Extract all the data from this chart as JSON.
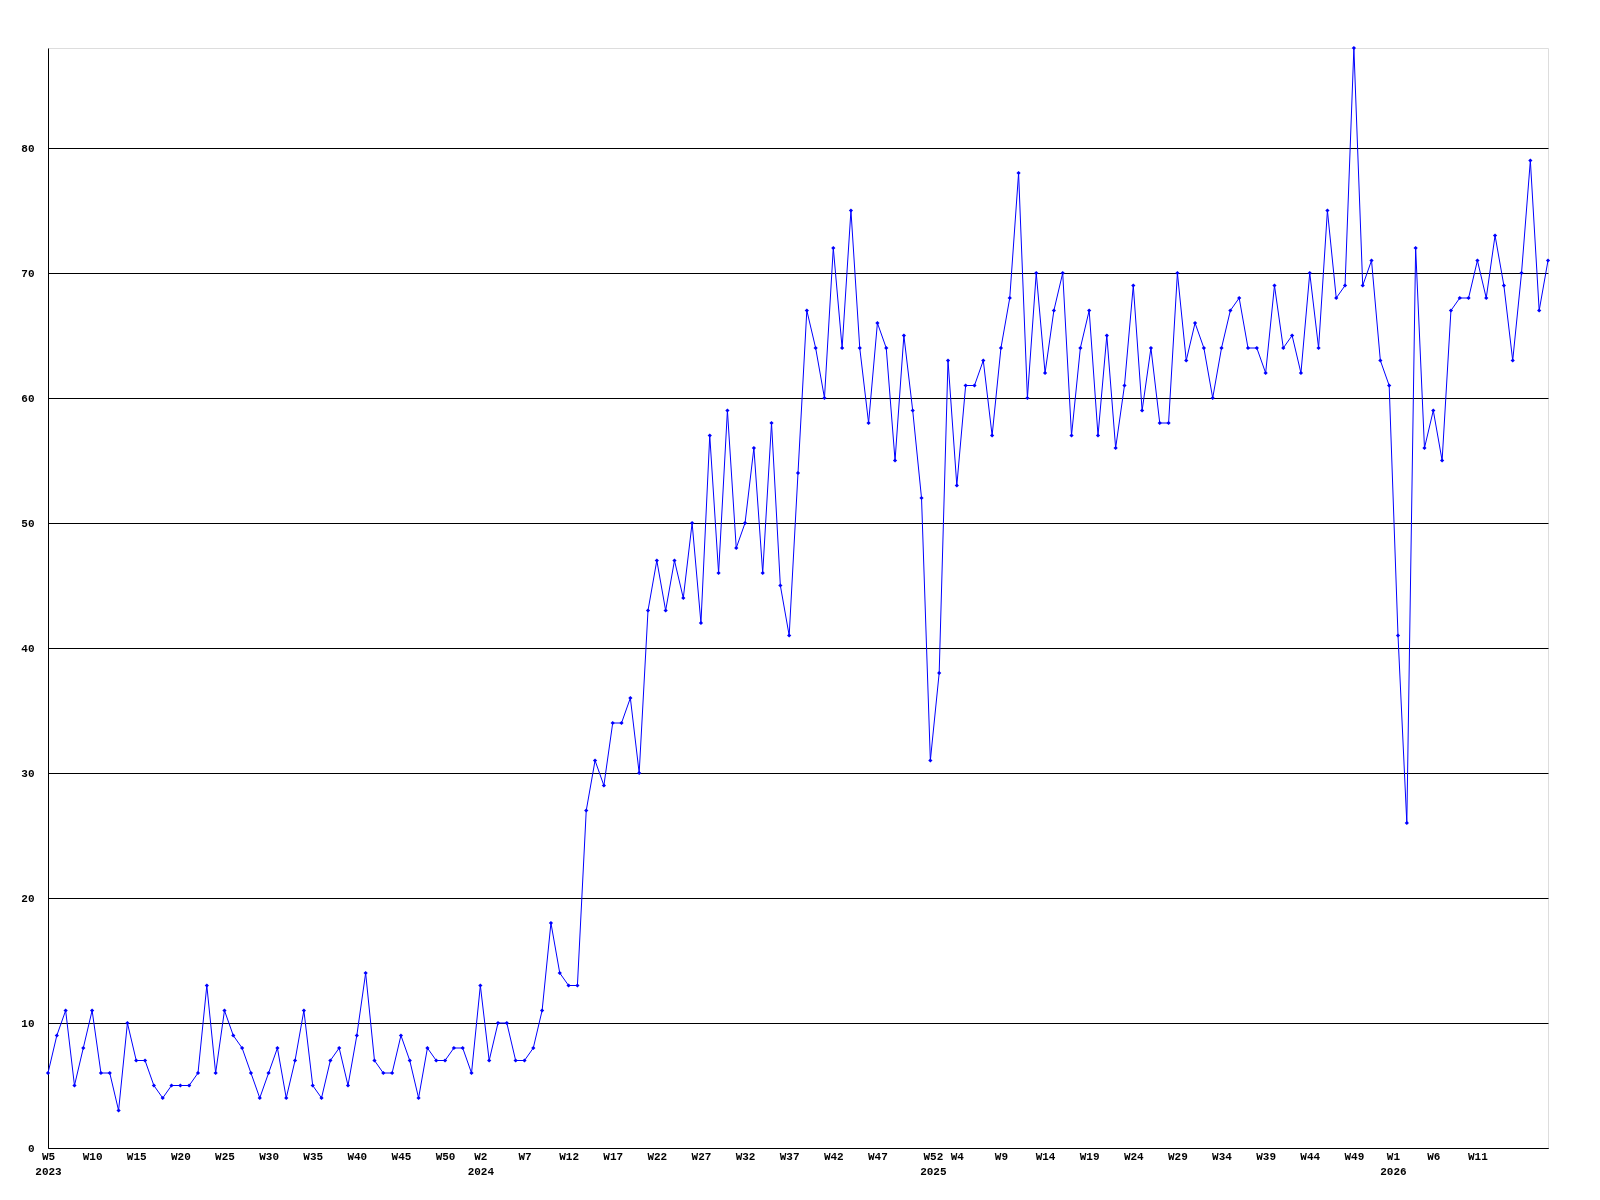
{
  "chart_data": {
    "type": "line",
    "marker": "diamond",
    "grid": "y",
    "line_style": "solid",
    "x": [
      "2023-01-30",
      "2023-02-06",
      "2023-02-13",
      "2023-02-20",
      "2023-02-27",
      "2023-03-06",
      "2023-03-13",
      "2023-03-20",
      "2023-03-27",
      "2023-04-03",
      "2023-04-10",
      "2023-04-17",
      "2023-04-24",
      "2023-05-01",
      "2023-05-08",
      "2023-05-15",
      "2023-05-22",
      "2023-05-29",
      "2023-06-05",
      "2023-06-12",
      "2023-06-19",
      "2023-06-26",
      "2023-07-03",
      "2023-07-10",
      "2023-07-17",
      "2023-07-24",
      "2023-07-31",
      "2023-08-07",
      "2023-08-14",
      "2023-08-21",
      "2023-08-28",
      "2023-09-04",
      "2023-09-11",
      "2023-09-18",
      "2023-09-25",
      "2023-10-02",
      "2023-10-09",
      "2023-10-16",
      "2023-10-23",
      "2023-10-30",
      "2023-11-06",
      "2023-11-13",
      "2023-11-20",
      "2023-11-27",
      "2023-12-04",
      "2023-12-11",
      "2023-12-18",
      "2023-12-25",
      "2024-01-01",
      "2024-01-08",
      "2024-01-15",
      "2024-01-22",
      "2024-01-29",
      "2024-02-05",
      "2024-02-12",
      "2024-02-19",
      "2024-02-26",
      "2024-03-04",
      "2024-03-11",
      "2024-03-18",
      "2024-03-25",
      "2024-04-01",
      "2024-04-08",
      "2024-04-15",
      "2024-04-22",
      "2024-04-29",
      "2024-05-06",
      "2024-05-13",
      "2024-05-20",
      "2024-05-27",
      "2024-06-03",
      "2024-06-10",
      "2024-06-17",
      "2024-06-24",
      "2024-07-01",
      "2024-07-08",
      "2024-07-15",
      "2024-07-22",
      "2024-07-29",
      "2024-08-05",
      "2024-08-12",
      "2024-08-19",
      "2024-08-26",
      "2024-09-02",
      "2024-09-09",
      "2024-09-16",
      "2024-09-23",
      "2024-09-30",
      "2024-10-07",
      "2024-10-14",
      "2024-10-21",
      "2024-10-28",
      "2024-11-04",
      "2024-11-11",
      "2024-11-18",
      "2024-11-25",
      "2024-12-02",
      "2024-12-09",
      "2024-12-16",
      "2024-12-23",
      "2024-12-30",
      "2025-01-06",
      "2025-01-13",
      "2025-01-20",
      "2025-01-27",
      "2025-02-03",
      "2025-02-10",
      "2025-02-17",
      "2025-02-24",
      "2025-03-03",
      "2025-03-10",
      "2025-03-17",
      "2025-03-24",
      "2025-03-31",
      "2025-04-07",
      "2025-04-14",
      "2025-04-21",
      "2025-04-28",
      "2025-05-05",
      "2025-05-12",
      "2025-05-19",
      "2025-05-26",
      "2025-06-02",
      "2025-06-09",
      "2025-06-16",
      "2025-06-23",
      "2025-06-30",
      "2025-07-07",
      "2025-07-14",
      "2025-07-21",
      "2025-07-28",
      "2025-08-04",
      "2025-08-11",
      "2025-08-18",
      "2025-08-25",
      "2025-09-01",
      "2025-09-08",
      "2025-09-15",
      "2025-09-22",
      "2025-09-29",
      "2025-10-06",
      "2025-10-13",
      "2025-10-20",
      "2025-10-27",
      "2025-11-03",
      "2025-11-10",
      "2025-11-17",
      "2025-11-24",
      "2025-12-01",
      "2025-12-08",
      "2025-12-15",
      "2025-12-22",
      "2025-12-29",
      "2026-01-05",
      "2026-01-12",
      "2026-01-19",
      "2026-01-26",
      "2026-02-02",
      "2026-02-09",
      "2026-02-16",
      "2026-02-23",
      "2026-03-02",
      "2026-03-09",
      "2026-03-16",
      "2026-03-23",
      "2026-03-30",
      "2026-04-06",
      "2026-04-13",
      "2026-04-20",
      "2026-04-27",
      "2026-05-04"
    ],
    "series": [
      {
        "color": "#0000ff",
        "values": [
          6,
          9,
          11,
          5,
          8,
          11,
          6,
          6,
          3,
          10,
          7,
          7,
          5,
          4,
          5,
          5,
          5,
          6,
          13,
          6,
          11,
          9,
          8,
          6,
          4,
          6,
          8,
          4,
          7,
          11,
          5,
          4,
          7,
          8,
          5,
          9,
          14,
          7,
          6,
          6,
          9,
          7,
          4,
          8,
          7,
          7,
          8,
          8,
          6,
          13,
          7,
          10,
          10,
          7,
          7,
          8,
          11,
          18,
          14,
          13,
          13,
          27,
          31,
          29,
          34,
          34,
          36,
          30,
          43,
          47,
          43,
          47,
          44,
          50,
          42,
          57,
          46,
          59,
          48,
          50,
          56,
          46,
          58,
          45,
          41,
          54,
          67,
          64,
          60,
          72,
          64,
          75,
          64,
          58,
          66,
          64,
          55,
          65,
          59,
          52,
          31,
          38,
          63,
          53,
          61,
          61,
          63,
          57,
          64,
          68,
          78,
          60,
          70,
          62,
          67,
          70,
          57,
          64,
          67,
          57,
          65,
          56,
          61,
          69,
          59,
          64,
          58,
          58,
          70,
          63,
          66,
          64,
          60,
          64,
          67,
          68,
          64,
          64,
          62,
          69,
          64,
          65,
          62,
          70,
          64,
          75,
          68,
          69,
          88,
          69,
          71,
          63,
          61,
          41,
          26,
          72,
          56,
          59,
          55,
          67,
          68,
          68,
          71,
          68,
          73,
          69,
          63,
          70,
          79,
          67,
          71
        ]
      }
    ],
    "xlim": [
      "2023-01-30",
      "2026-05-04"
    ],
    "xticks": [
      {
        "value": "2023-01-30",
        "label": "W5\n2023"
      },
      {
        "value": "2023-03-06",
        "label": "W10"
      },
      {
        "value": "2023-04-10",
        "label": "W15"
      },
      {
        "value": "2023-05-15",
        "label": "W20"
      },
      {
        "value": "2023-06-19",
        "label": "W25"
      },
      {
        "value": "2023-07-24",
        "label": "W30"
      },
      {
        "value": "2023-08-28",
        "label": "W35"
      },
      {
        "value": "2023-10-02",
        "label": "W40"
      },
      {
        "value": "2023-11-06",
        "label": "W45"
      },
      {
        "value": "2023-12-11",
        "label": "W50"
      },
      {
        "value": "2024-01-08",
        "label": "W2\n2024"
      },
      {
        "value": "2024-02-12",
        "label": "W7"
      },
      {
        "value": "2024-03-18",
        "label": "W12"
      },
      {
        "value": "2024-04-22",
        "label": "W17"
      },
      {
        "value": "2024-05-27",
        "label": "W22"
      },
      {
        "value": "2024-07-01",
        "label": "W27"
      },
      {
        "value": "2024-08-05",
        "label": "W32"
      },
      {
        "value": "2024-09-09",
        "label": "W37"
      },
      {
        "value": "2024-10-14",
        "label": "W42"
      },
      {
        "value": "2024-11-18",
        "label": "W47"
      },
      {
        "value": "2025-01-01",
        "label": "W52\n2025"
      },
      {
        "value": "2025-01-20",
        "label": "W4"
      },
      {
        "value": "2025-02-24",
        "label": "W9"
      },
      {
        "value": "2025-03-31",
        "label": "W14"
      },
      {
        "value": "2025-05-05",
        "label": "W19"
      },
      {
        "value": "2025-06-09",
        "label": "W24"
      },
      {
        "value": "2025-07-14",
        "label": "W29"
      },
      {
        "value": "2025-08-18",
        "label": "W34"
      },
      {
        "value": "2025-09-22",
        "label": "W39"
      },
      {
        "value": "2025-10-27",
        "label": "W44"
      },
      {
        "value": "2025-12-01",
        "label": "W49"
      },
      {
        "value": "2026-01-01",
        "label": "W1\n2026"
      },
      {
        "value": "2026-02-02",
        "label": "W6"
      },
      {
        "value": "2026-03-09",
        "label": "W11"
      }
    ],
    "ylim": [
      0,
      88
    ],
    "yticks": [
      0,
      10,
      20,
      30,
      40,
      50,
      60,
      70,
      80
    ]
  }
}
